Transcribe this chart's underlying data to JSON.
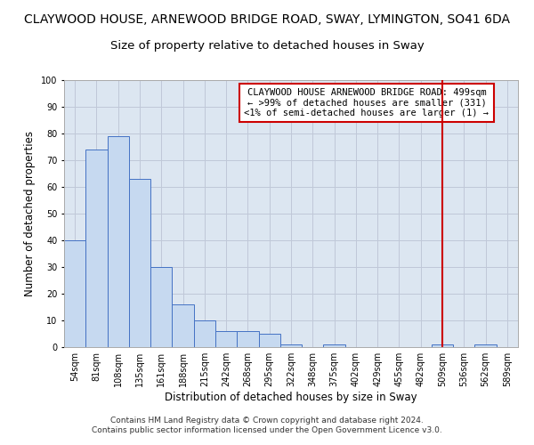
{
  "title": "CLAYWOOD HOUSE, ARNEWOOD BRIDGE ROAD, SWAY, LYMINGTON, SO41 6DA",
  "subtitle": "Size of property relative to detached houses in Sway",
  "xlabel": "Distribution of detached houses by size in Sway",
  "ylabel": "Number of detached properties",
  "footer": "Contains HM Land Registry data © Crown copyright and database right 2024.\nContains public sector information licensed under the Open Government Licence v3.0.",
  "bar_labels": [
    "54sqm",
    "81sqm",
    "108sqm",
    "135sqm",
    "161sqm",
    "188sqm",
    "215sqm",
    "242sqm",
    "268sqm",
    "295sqm",
    "322sqm",
    "348sqm",
    "375sqm",
    "402sqm",
    "429sqm",
    "455sqm",
    "482sqm",
    "509sqm",
    "536sqm",
    "562sqm",
    "589sqm"
  ],
  "bar_values": [
    40,
    74,
    79,
    63,
    30,
    16,
    10,
    6,
    6,
    5,
    1,
    0,
    1,
    0,
    0,
    0,
    0,
    1,
    0,
    1,
    0
  ],
  "bar_color": "#c6d9f0",
  "bar_edge_color": "#4472c4",
  "grid_color": "#c0c8d8",
  "background_color": "#dce6f1",
  "vline_x_index": 17,
  "vline_color": "#cc0000",
  "annotation_text": "CLAYWOOD HOUSE ARNEWOOD BRIDGE ROAD: 499sqm\n← >99% of detached houses are smaller (331)\n<1% of semi-detached houses are larger (1) →",
  "annotation_box_color": "#cc0000",
  "ylim": [
    0,
    100
  ],
  "yticks": [
    0,
    10,
    20,
    30,
    40,
    50,
    60,
    70,
    80,
    90,
    100
  ],
  "title_fontsize": 10,
  "subtitle_fontsize": 9.5,
  "axis_label_fontsize": 8.5,
  "tick_fontsize": 7,
  "annotation_fontsize": 7.5,
  "footer_fontsize": 6.5
}
